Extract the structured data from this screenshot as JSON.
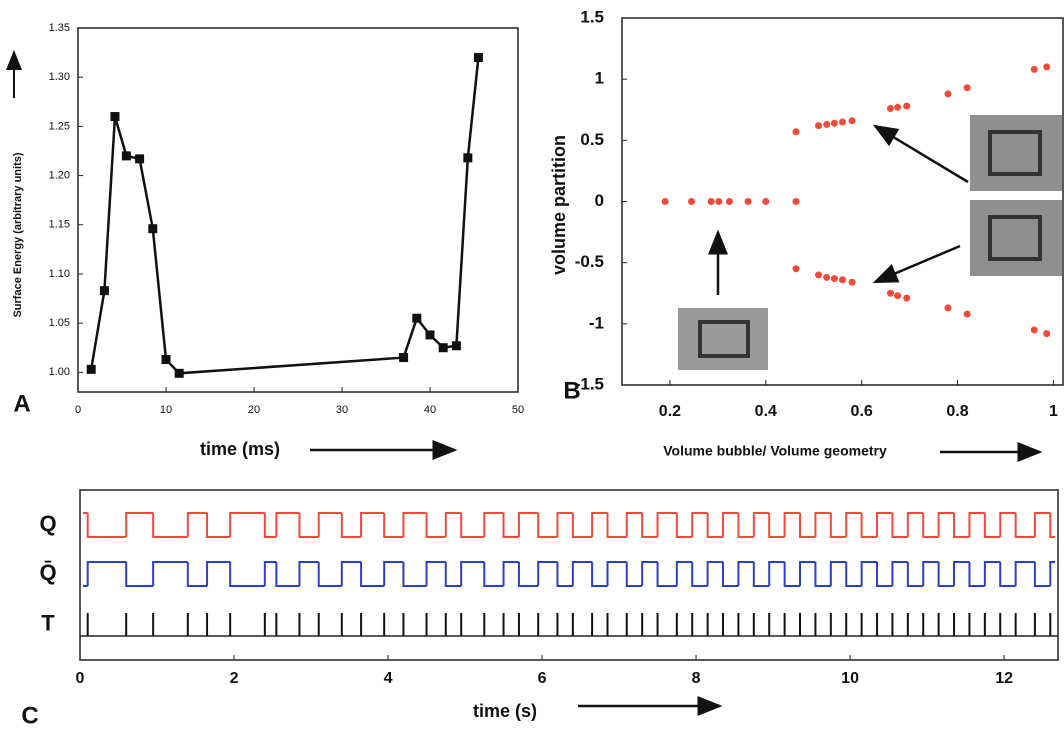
{
  "chart_data": [
    {
      "type": "line",
      "panel_label": "A",
      "xlabel": "time (ms)",
      "ylabel": "Surface Energy (arbitrary units)",
      "color": "#111111",
      "x": [
        1.5,
        3,
        4.2,
        5.5,
        7,
        8.5,
        10,
        11.5,
        37,
        38.5,
        40,
        41.5,
        43,
        44.3,
        45.5
      ],
      "values": [
        1.003,
        1.083,
        1.26,
        1.22,
        1.217,
        1.146,
        1.013,
        0.999,
        1.015,
        1.055,
        1.038,
        1.025,
        1.027,
        1.218,
        1.32
      ],
      "xlim": [
        0,
        50
      ],
      "xticks": [
        0,
        10,
        20,
        30,
        40,
        50
      ],
      "ylim": [
        0.98,
        1.35
      ],
      "yticks": [
        {
          "value": 1.0,
          "label": "1.00"
        },
        {
          "value": 1.05,
          "label": "1.05"
        },
        {
          "value": 1.1,
          "label": "1.10"
        },
        {
          "value": 1.15,
          "label": "1.15"
        },
        {
          "value": 1.2,
          "label": "1.20"
        },
        {
          "value": 1.25,
          "label": "1.25"
        },
        {
          "value": 1.3,
          "label": "1.30"
        },
        {
          "value": 1.35,
          "label": "1.35"
        }
      ]
    },
    {
      "type": "scatter",
      "panel_label": "B",
      "xlabel": "Volume bubble/ Volume geometry",
      "ylabel": "volume partition",
      "color": "#f04a3a",
      "x": [
        0.19,
        0.245,
        0.286,
        0.302,
        0.324,
        0.363,
        0.4,
        0.463,
        0.463,
        0.51,
        0.527,
        0.543,
        0.56,
        0.58,
        0.66,
        0.675,
        0.694,
        0.78,
        0.82,
        0.96,
        0.986,
        0.463,
        0.51,
        0.527,
        0.543,
        0.56,
        0.58,
        0.66,
        0.675,
        0.694,
        0.78,
        0.82,
        0.96,
        0.986
      ],
      "values": [
        0,
        0,
        0,
        0,
        0,
        0,
        0,
        0,
        0.57,
        0.62,
        0.63,
        0.64,
        0.65,
        0.66,
        0.76,
        0.77,
        0.78,
        0.88,
        0.93,
        1.08,
        1.1,
        -0.55,
        -0.6,
        -0.62,
        -0.63,
        -0.64,
        -0.66,
        -0.75,
        -0.77,
        -0.79,
        -0.87,
        -0.92,
        -1.05,
        -1.08
      ],
      "xlim": [
        0.1,
        1.02
      ],
      "xticks": [
        0.2,
        0.4,
        0.6,
        0.8,
        1
      ],
      "ylim": [
        -1.5,
        1.5
      ],
      "yticks": [
        -1.5,
        -1,
        -0.5,
        0,
        0.5,
        1,
        1.5
      ]
    },
    {
      "type": "timing",
      "panel_label": "C",
      "xlabel": "time (s)",
      "x": [
        0.1,
        0.6,
        0.95,
        1.4,
        1.65,
        1.95,
        2.4,
        2.55,
        2.85,
        3.1,
        3.4,
        3.65,
        3.95,
        4.2,
        4.5,
        4.75,
        4.95,
        5.25,
        5.5,
        5.7,
        5.95,
        6.2,
        6.4,
        6.65,
        6.85,
        7.1,
        7.3,
        7.5,
        7.75,
        7.95,
        8.15,
        8.35,
        8.55,
        8.75,
        8.95,
        9.15,
        9.35,
        9.55,
        9.75,
        9.95,
        10.15,
        10.35,
        10.55,
        10.75,
        10.95,
        11.15,
        11.35,
        11.55,
        11.75,
        11.95,
        12.15,
        12.4,
        12.6
      ],
      "series": [
        {
          "name": "Q",
          "color": "#f04a3a",
          "values": [
            0,
            1,
            0,
            1,
            0,
            1,
            0,
            1,
            0,
            1,
            0,
            1,
            0,
            1,
            0,
            1,
            0,
            1,
            0,
            1,
            0,
            1,
            0,
            1,
            0,
            1,
            0,
            1,
            0,
            1,
            0,
            1,
            0,
            1,
            0,
            1,
            0,
            1,
            0,
            1,
            0,
            1,
            0,
            1,
            0,
            1,
            0,
            1,
            0,
            1,
            0,
            1,
            0
          ]
        },
        {
          "name": "Q̄",
          "color": "#2a3fc8",
          "values": [
            1,
            0,
            1,
            0,
            1,
            0,
            1,
            0,
            1,
            0,
            1,
            0,
            1,
            0,
            1,
            0,
            1,
            0,
            1,
            0,
            1,
            0,
            1,
            0,
            1,
            0,
            1,
            0,
            1,
            0,
            1,
            0,
            1,
            0,
            1,
            0,
            1,
            0,
            1,
            0,
            1,
            0,
            1,
            0,
            1,
            0,
            1,
            0,
            1,
            0,
            1,
            0,
            1
          ]
        },
        {
          "name": "T",
          "color": "#111111",
          "values": [
            1,
            1,
            1,
            1,
            1,
            1,
            1,
            1,
            1,
            1,
            1,
            1,
            1,
            1,
            1,
            1,
            1,
            1,
            1,
            1,
            1,
            1,
            1,
            1,
            1,
            1,
            1,
            1,
            1,
            1,
            1,
            1,
            1,
            1,
            1,
            1,
            1,
            1,
            1,
            1,
            1,
            1,
            1,
            1,
            1,
            1,
            1,
            1,
            1,
            1,
            1,
            1,
            1
          ]
        }
      ],
      "xlim": [
        0,
        12.7
      ],
      "xticks": [
        0,
        2,
        4,
        6,
        8,
        10,
        12
      ]
    }
  ]
}
